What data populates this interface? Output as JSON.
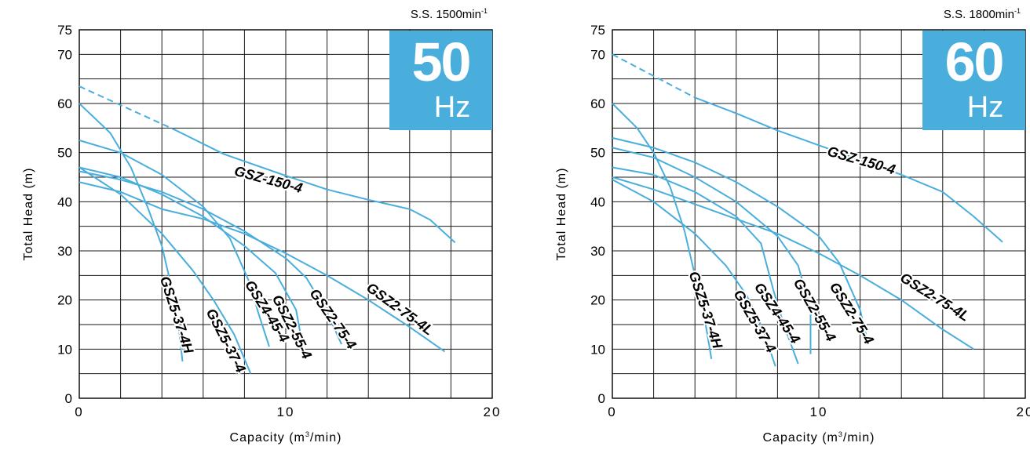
{
  "chart_data": [
    {
      "type": "line",
      "speed_label": "S.S. 1500min",
      "speed_unit_sup": "-1",
      "badge_number": "50",
      "badge_unit": "Hz",
      "xlabel_prefix": "Capacity (m",
      "xlabel_sup": "3",
      "xlabel_suffix": "/min)",
      "ylabel": "Total Head (m)",
      "xlim": [
        0,
        20
      ],
      "ylim": [
        0,
        75
      ],
      "x_ticks": [
        0,
        10,
        20
      ],
      "y_ticks": [
        0,
        10,
        20,
        30,
        40,
        50,
        60,
        70,
        75
      ],
      "x_grid": [
        0,
        2,
        4,
        6,
        8,
        10,
        12,
        14,
        16,
        18,
        20
      ],
      "y_grid": [
        0,
        5,
        10,
        15,
        20,
        25,
        30,
        35,
        40,
        45,
        50,
        55,
        60,
        65,
        70,
        75
      ],
      "grid": true,
      "accent_color": "#4aaedd",
      "series": [
        {
          "name": "GSZ-150-4",
          "points": [
            [
              0,
              63.5
            ],
            [
              4.7,
              54.5
            ],
            [
              7,
              49.7
            ],
            [
              10,
              45.3
            ],
            [
              12,
              42.5
            ],
            [
              14,
              40.4
            ],
            [
              16,
              38.5
            ],
            [
              17,
              36.3
            ],
            [
              18.2,
              31.7
            ]
          ],
          "dashed_until": 4.7,
          "label_at": [
            9.1,
            43.6
          ],
          "label_angle": 15
        },
        {
          "name": "GSZ2-75-4L",
          "points": [
            [
              0,
              44
            ],
            [
              2,
              42
            ],
            [
              4,
              38.5
            ],
            [
              6,
              36.5
            ],
            [
              8,
              33.5
            ],
            [
              10,
              29.5
            ],
            [
              12,
              25
            ],
            [
              14,
              20
            ],
            [
              16,
              14.5
            ],
            [
              17.7,
              9.5
            ]
          ],
          "label_at": [
            15.4,
            17.4
          ],
          "label_angle": 36
        },
        {
          "name": "GSZ2-75-4",
          "points": [
            [
              0,
              46.2
            ],
            [
              2,
              44.5
            ],
            [
              4,
              42
            ],
            [
              6,
              38.5
            ],
            [
              8,
              34
            ],
            [
              10,
              28.5
            ],
            [
              11,
              24.5
            ],
            [
              12,
              17.5
            ],
            [
              12.7,
              11
            ]
          ],
          "label_at": [
            12.1,
            15.6
          ],
          "label_angle": 55
        },
        {
          "name": "GSZ2-55-4",
          "points": [
            [
              0,
              47
            ],
            [
              2,
              45
            ],
            [
              4,
              41.5
            ],
            [
              6,
              37
            ],
            [
              8,
              31
            ],
            [
              9.5,
              25.5
            ],
            [
              10.5,
              18
            ],
            [
              10.8,
              11
            ]
          ],
          "label_at": [
            10.1,
            14.1
          ],
          "label_angle": 63
        },
        {
          "name": "GSZ4-45-4",
          "points": [
            [
              0,
              52.5
            ],
            [
              2,
              50
            ],
            [
              4,
              45.5
            ],
            [
              6,
              39
            ],
            [
              7.3,
              32.5
            ],
            [
              8.2,
              24
            ],
            [
              8.7,
              17
            ],
            [
              9.2,
              10.5
            ]
          ],
          "label_at": [
            8.9,
            17.2
          ],
          "label_angle": 58
        },
        {
          "name": "GSZ5-37-4",
          "points": [
            [
              0,
              47
            ],
            [
              2,
              41.5
            ],
            [
              4,
              33.5
            ],
            [
              5.5,
              26
            ],
            [
              6.5,
              20
            ],
            [
              7.5,
              13
            ],
            [
              8.3,
              5
            ]
          ],
          "label_at": [
            6.9,
            11.3
          ],
          "label_angle": 63
        },
        {
          "name": "GSZ5-37-4H",
          "points": [
            [
              0,
              60
            ],
            [
              1.5,
              54
            ],
            [
              2.5,
              47
            ],
            [
              3.3,
              39
            ],
            [
              4,
              31
            ],
            [
              4.5,
              22
            ],
            [
              4.8,
              15
            ],
            [
              5,
              7.5
            ]
          ],
          "label_at": [
            4.5,
            16.7
          ],
          "label_angle": 72
        }
      ]
    },
    {
      "type": "line",
      "speed_label": "S.S. 1800min",
      "speed_unit_sup": "-1",
      "badge_number": "60",
      "badge_unit": "Hz",
      "xlabel_prefix": "Capacity (m",
      "xlabel_sup": "3",
      "xlabel_suffix": "/min)",
      "ylabel": "Total Head (m)",
      "xlim": [
        0,
        20
      ],
      "ylim": [
        0,
        75
      ],
      "x_ticks": [
        0,
        10,
        20
      ],
      "y_ticks": [
        0,
        10,
        20,
        30,
        40,
        50,
        60,
        70,
        75
      ],
      "x_grid": [
        0,
        2,
        4,
        6,
        8,
        10,
        12,
        14,
        16,
        18,
        20
      ],
      "y_grid": [
        0,
        5,
        10,
        15,
        20,
        25,
        30,
        35,
        40,
        45,
        50,
        55,
        60,
        65,
        70,
        75
      ],
      "grid": true,
      "accent_color": "#4aaedd",
      "series": [
        {
          "name": "GSZ-150-4",
          "points": [
            [
              0,
              70
            ],
            [
              4,
              61.2
            ],
            [
              6,
              58
            ],
            [
              8,
              54.5
            ],
            [
              10,
              51.5
            ],
            [
              12,
              48.5
            ],
            [
              14,
              45.5
            ],
            [
              16,
              42
            ],
            [
              17.5,
              37
            ],
            [
              18.9,
              31.8
            ]
          ],
          "dashed_until": 4,
          "label_at": [
            12,
            47.5
          ],
          "label_angle": 16
        },
        {
          "name": "GSZ2-75-4L",
          "points": [
            [
              0,
              45
            ],
            [
              2,
              42.5
            ],
            [
              4,
              39.5
            ],
            [
              6,
              36.5
            ],
            [
              8,
              33.5
            ],
            [
              10,
              29.5
            ],
            [
              12,
              25
            ],
            [
              14,
              20
            ],
            [
              16,
              14
            ],
            [
              17.5,
              10
            ]
          ],
          "label_at": [
            15.5,
            19.8
          ],
          "label_angle": 32
        },
        {
          "name": "GSZ2-75-4",
          "points": [
            [
              0,
              53
            ],
            [
              2,
              51
            ],
            [
              4,
              48
            ],
            [
              6,
              44
            ],
            [
              8,
              39
            ],
            [
              10,
              33
            ],
            [
              11,
              27.5
            ],
            [
              12,
              18
            ],
            [
              12.4,
              11
            ]
          ],
          "label_at": [
            11.4,
            16.8
          ],
          "label_angle": 58
        },
        {
          "name": "GSZ2-55-4",
          "points": [
            [
              0,
              51
            ],
            [
              2,
              49
            ],
            [
              4,
              45
            ],
            [
              6,
              40
            ],
            [
              8,
              33
            ],
            [
              9,
              27
            ],
            [
              9.6,
              18
            ],
            [
              9.6,
              9
            ]
          ],
          "label_at": [
            9.6,
            17.5
          ],
          "label_angle": 60
        },
        {
          "name": "GSZ4-45-4",
          "points": [
            [
              0,
              47
            ],
            [
              2,
              45.5
            ],
            [
              4,
              42
            ],
            [
              6,
              37
            ],
            [
              7.2,
              31.5
            ],
            [
              7.8,
              22
            ],
            [
              8.3,
              15
            ],
            [
              9,
              7
            ]
          ],
          "label_at": [
            7.8,
            16.8
          ],
          "label_angle": 56
        },
        {
          "name": "GSZ5-37-4",
          "points": [
            [
              0,
              44.5
            ],
            [
              2,
              40
            ],
            [
              4,
              33.5
            ],
            [
              5.5,
              27
            ],
            [
              6.5,
              21
            ],
            [
              7.3,
              14
            ],
            [
              7.9,
              6.5
            ]
          ],
          "label_at": [
            6.7,
            15.2
          ],
          "label_angle": 60
        },
        {
          "name": "GSZ5-37-4H",
          "points": [
            [
              0,
              60
            ],
            [
              1.2,
              55
            ],
            [
              2,
              50
            ],
            [
              2.8,
              43
            ],
            [
              3.5,
              34
            ],
            [
              4,
              25
            ],
            [
              4.4,
              18
            ],
            [
              4.8,
              8
            ]
          ],
          "label_at": [
            4.3,
            17.7
          ],
          "label_angle": 72
        }
      ]
    }
  ]
}
